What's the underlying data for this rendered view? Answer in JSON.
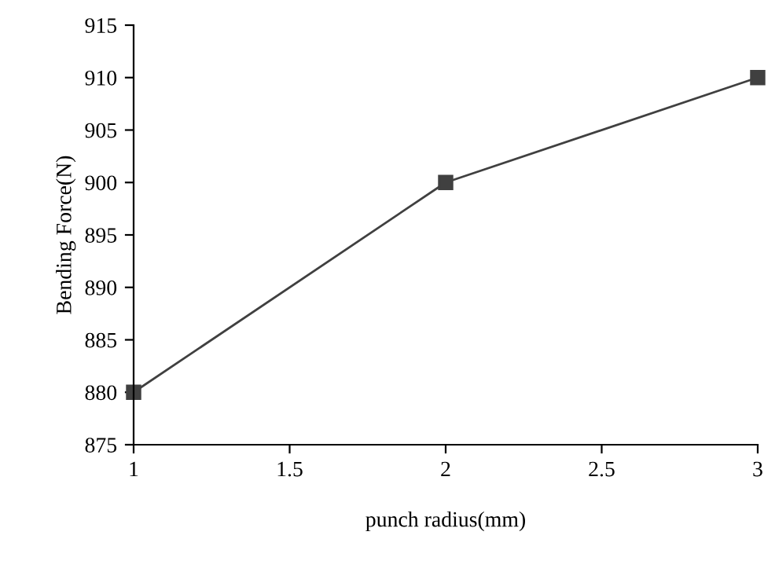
{
  "chart_data": {
    "type": "line",
    "xlabel": "punch radius(mm)",
    "ylabel": "Bending Force(N)",
    "series": [
      {
        "color": "#404040",
        "x": [
          1,
          2,
          3
        ],
        "values": [
          880,
          900,
          910
        ]
      }
    ],
    "xlim": [
      1,
      3
    ],
    "xticks": [
      1,
      1.5,
      2,
      2.5,
      3
    ],
    "ylim": [
      875,
      915
    ],
    "yticks": [
      875,
      880,
      885,
      890,
      895,
      900,
      905,
      910,
      915
    ],
    "marker": "square",
    "line_style": "solid",
    "grid": false,
    "legend": false
  }
}
